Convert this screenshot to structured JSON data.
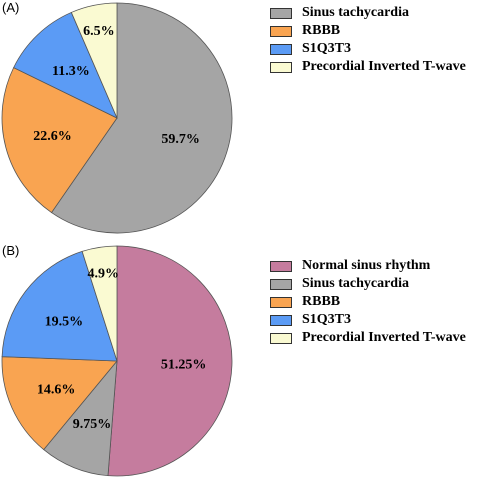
{
  "chart_data": [
    {
      "type": "pie",
      "panel_label": "(A)",
      "slices": [
        {
          "label": "Sinus tachycardia",
          "value": 59.7,
          "value_label": "59.7%",
          "color": "#a5a5a5"
        },
        {
          "label": "RBBB",
          "value": 22.6,
          "value_label": "22.6%",
          "color": "#f9a451"
        },
        {
          "label": "S1Q3T3",
          "value": 11.3,
          "value_label": "11.3%",
          "color": "#5b9bf5"
        },
        {
          "label": "Precordial Inverted T-wave",
          "value": 6.5,
          "value_label": "6.5%",
          "color": "#fafad2"
        }
      ],
      "legend": [
        "Sinus tachycardia",
        "RBBB",
        "S1Q3T3",
        "Precordial Inverted T-wave"
      ],
      "legend_position": "right"
    },
    {
      "type": "pie",
      "panel_label": "(B)",
      "slices": [
        {
          "label": "Normal sinus rhythm",
          "value": 51.25,
          "value_label": "51.25%",
          "color": "#c57c9e"
        },
        {
          "label": "Sinus tachycardia",
          "value": 9.75,
          "value_label": "9.75%",
          "color": "#a5a5a5"
        },
        {
          "label": "RBBB",
          "value": 14.6,
          "value_label": "14.6%",
          "color": "#f9a451"
        },
        {
          "label": "S1Q3T3",
          "value": 19.5,
          "value_label": "19.5%",
          "color": "#5b9bf5"
        },
        {
          "label": "Precordial Inverted T-wave",
          "value": 4.9,
          "value_label": "4.9%",
          "color": "#fafad2"
        }
      ],
      "legend": [
        "Normal sinus rhythm",
        "Sinus tachycardia",
        "RBBB",
        "S1Q3T3",
        "Precordial Inverted T-wave"
      ],
      "legend_position": "right"
    }
  ]
}
